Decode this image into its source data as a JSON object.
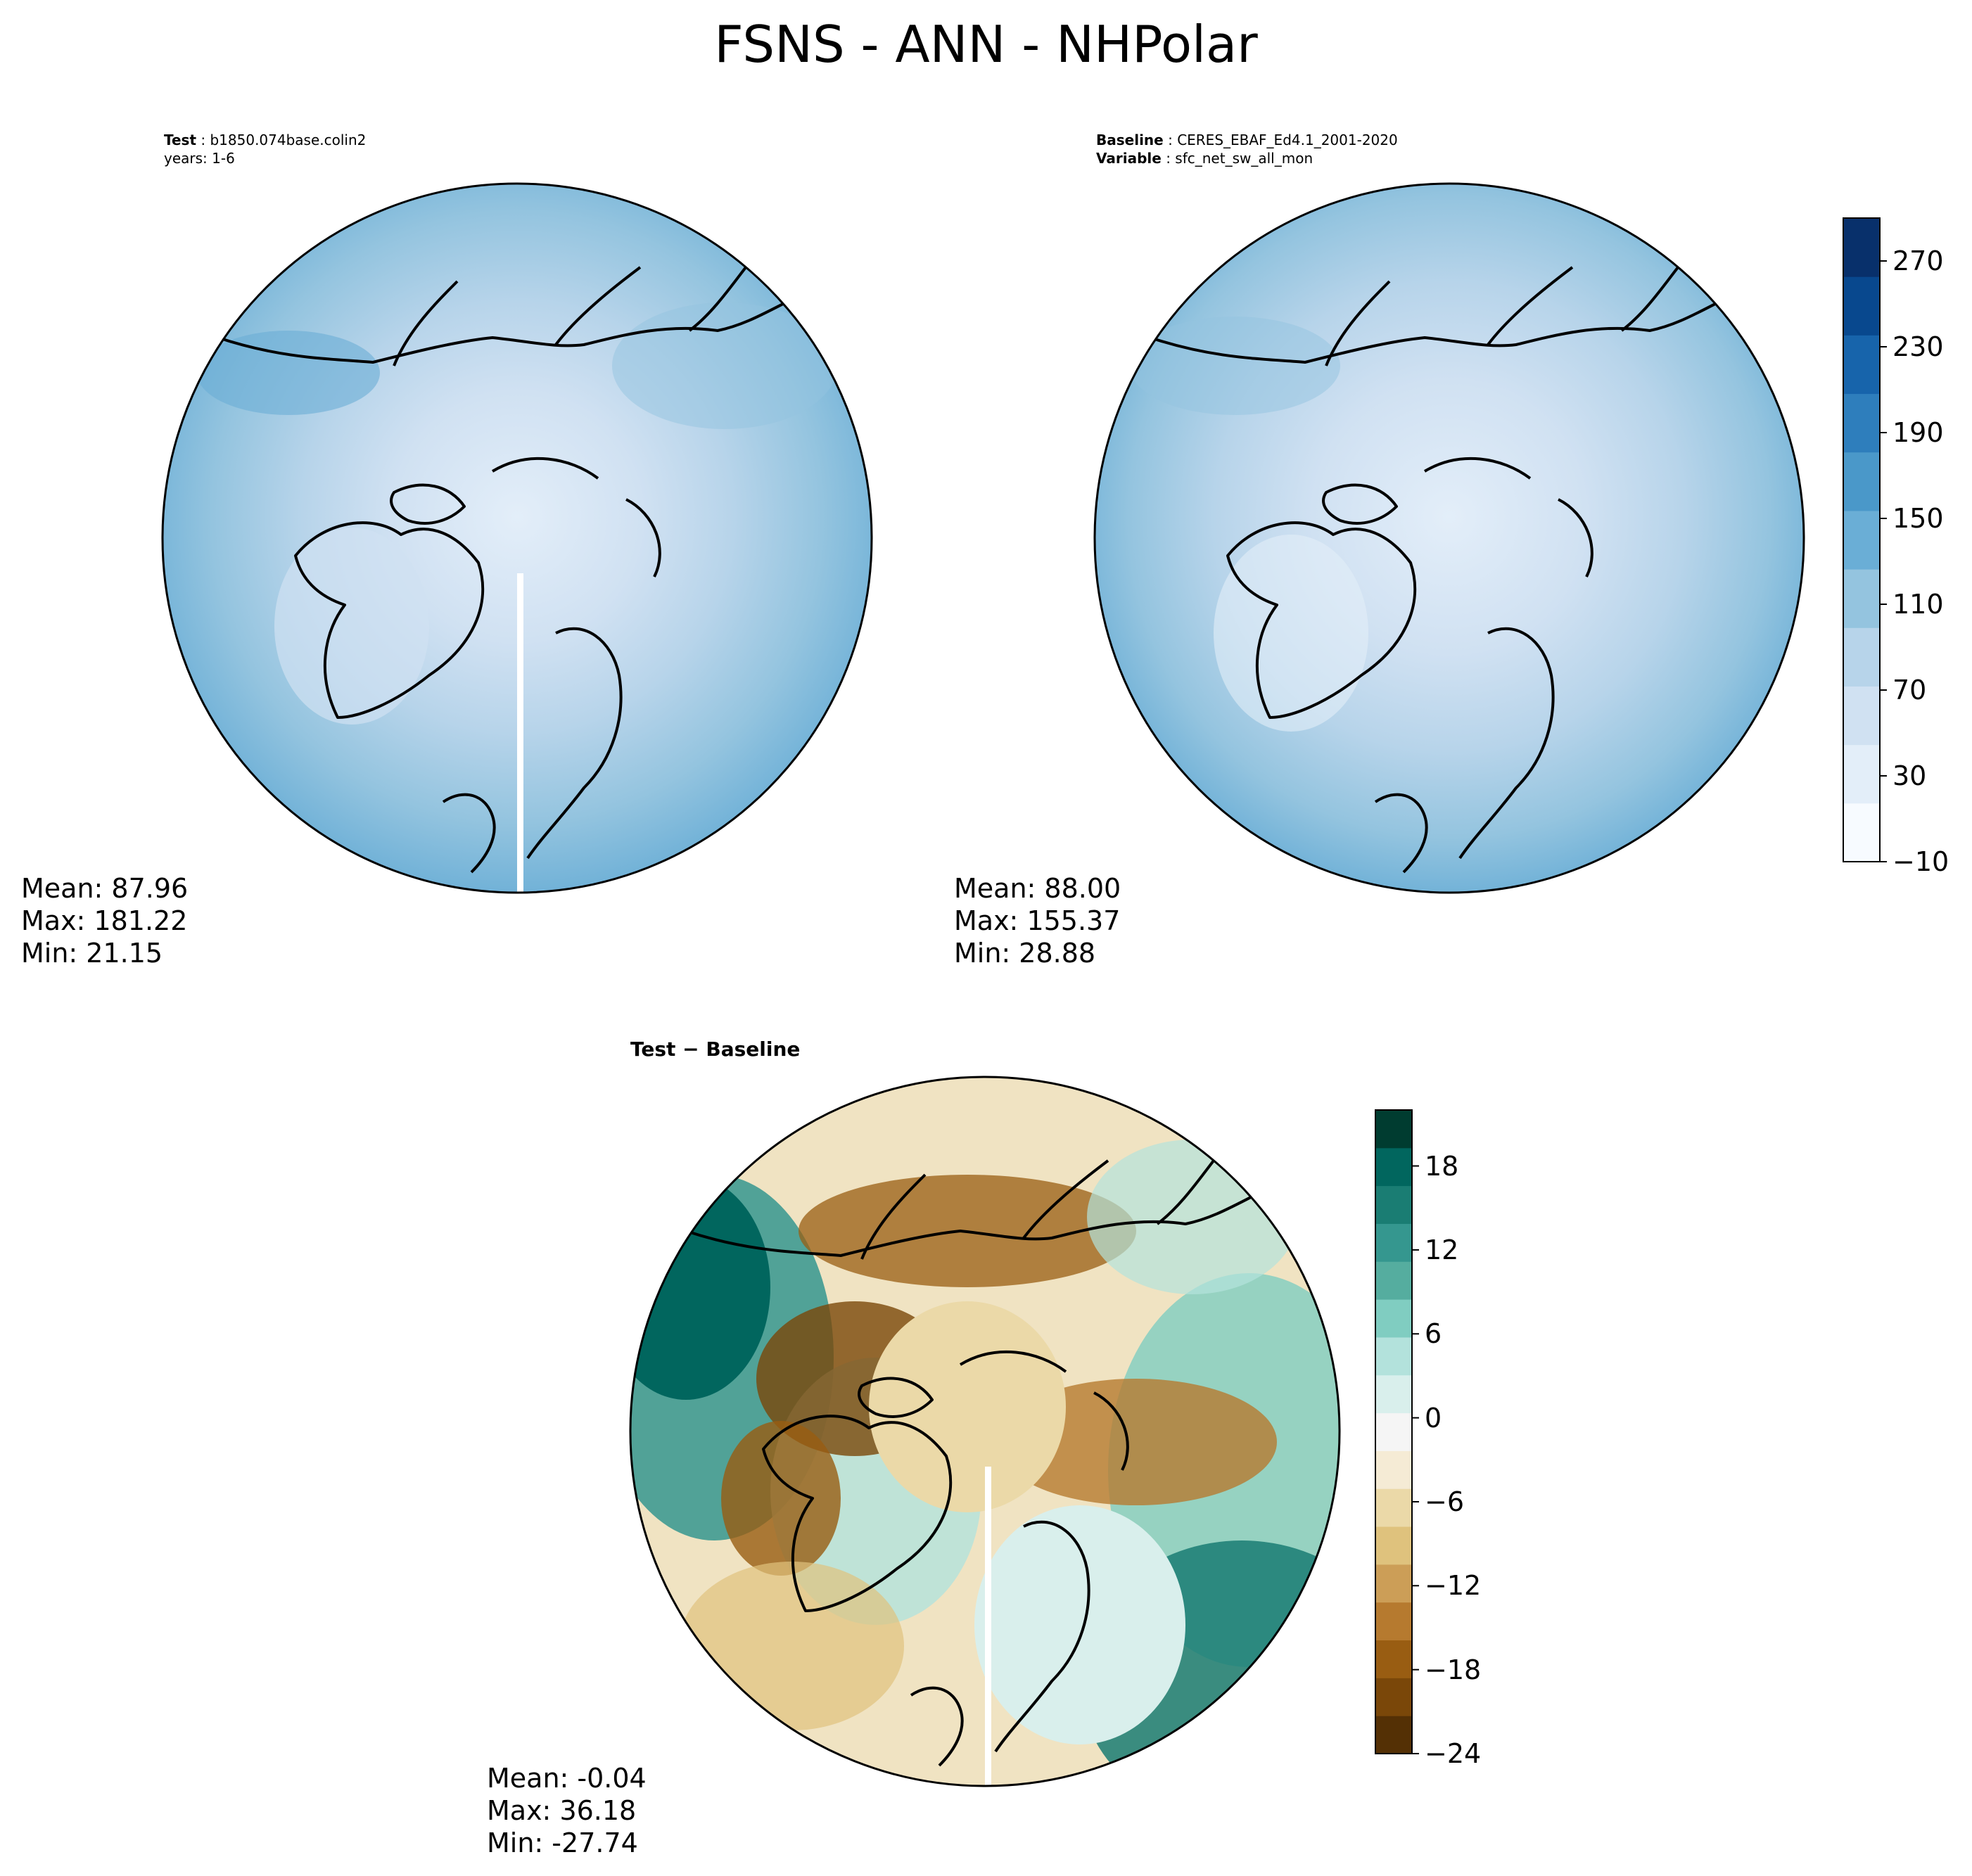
{
  "title": "FSNS - ANN - NHPolar",
  "panels": [
    {
      "id": "test",
      "header": {
        "label": "Test",
        "value": "b1850.074base.colin2",
        "line2": "years: 1-6"
      },
      "stats": {
        "mean": "Mean: 87.96",
        "max": "Max: 181.22",
        "min": "Min: 21.15"
      }
    },
    {
      "id": "baseline",
      "header": {
        "label": "Baseline",
        "value": "CERES_EBAF_Ed4.1_2001-2020",
        "label2": "Variable",
        "value2": "sfc_net_sw_all_mon"
      },
      "stats": {
        "mean": "Mean: 88.00",
        "max": "Max: 155.37",
        "min": "Min: 28.88"
      }
    },
    {
      "id": "difference",
      "header": {
        "title": "Test − Baseline"
      },
      "stats": {
        "mean": "Mean: -0.04",
        "max": "Max: 36.18",
        "min": "Min: -27.74"
      }
    }
  ],
  "colorbars": {
    "main": {
      "colormap": "Blues",
      "range": [
        -10,
        290
      ],
      "ticks": [
        "270",
        "230",
        "190",
        "150",
        "110",
        "70",
        "30",
        "−10"
      ],
      "tick_values": [
        270,
        230,
        190,
        150,
        110,
        70,
        30,
        -10
      ],
      "colors": [
        "#f7fbff",
        "#e3eef9",
        "#d0e1f2",
        "#b7d4ea",
        "#94c4df",
        "#6aaed6",
        "#4a98c9",
        "#2e7ebc",
        "#1764ab",
        "#08488e",
        "#08306b"
      ]
    },
    "diff": {
      "colormap": "BrBG",
      "range": [
        -24,
        22
      ],
      "ticks": [
        "18",
        "12",
        "6",
        "0",
        "−6",
        "−12",
        "−18",
        "−24"
      ],
      "tick_values": [
        18,
        12,
        6,
        0,
        -6,
        -12,
        -18,
        -24
      ],
      "colors": [
        "#543005",
        "#7a4709",
        "#995d12",
        "#b67a2f",
        "#cc9e57",
        "#dfc27d",
        "#ebd9a8",
        "#f5ebd5",
        "#f5f5f5",
        "#d9efec",
        "#b3e2dc",
        "#80cdc1",
        "#55ad9f",
        "#35978f",
        "#1a7d73",
        "#01665e",
        "#003c30"
      ]
    }
  },
  "legend_colors": {
    "map_blue_outer": "#6aaed6",
    "map_blue_mid": "#94c4df",
    "map_blue_inner": "#d0e1f2",
    "map_blue_center": "#e3eef9",
    "diff_brown": "#a86a22",
    "diff_teal": "#1a7d73",
    "coastline": "#000000"
  }
}
